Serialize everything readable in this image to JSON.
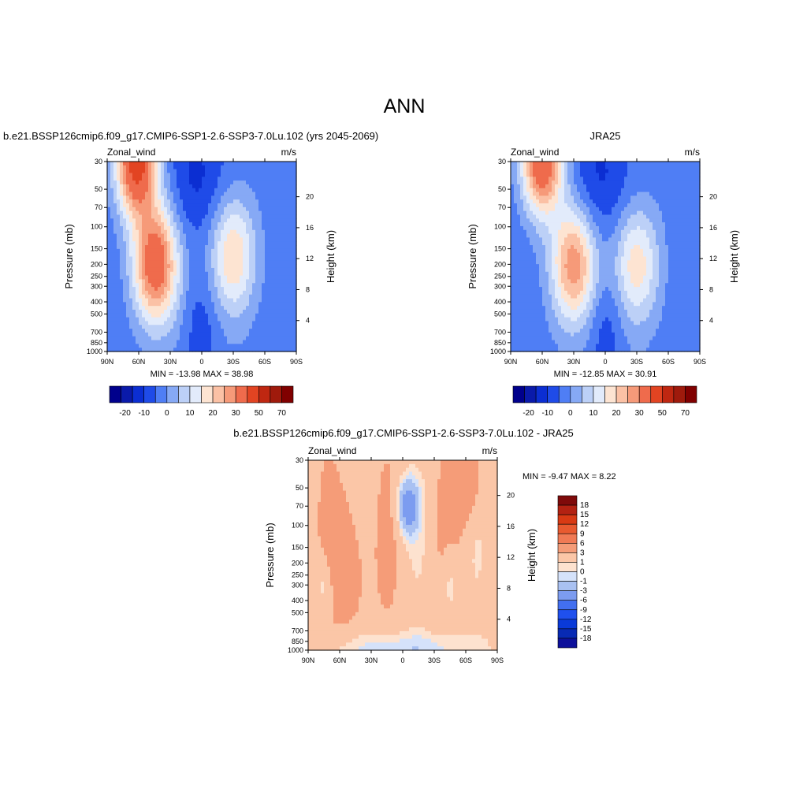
{
  "main_title": "ANN",
  "colors": {
    "top_palette": [
      "#00008c",
      "#0a1aaa",
      "#0b2ed2",
      "#1f4be8",
      "#4f7ef5",
      "#86a9f5",
      "#bcd0f7",
      "#e2ebfb",
      "#fde4d2",
      "#fbc1a5",
      "#f69a79",
      "#ef6b4c",
      "#e24422",
      "#bf2711",
      "#9f1a0c",
      "#800000"
    ],
    "diff_palette": [
      "#0d109a",
      "#082ab4",
      "#0a3ad8",
      "#1f50ee",
      "#426ff0",
      "#7c9cf0",
      "#a9c1f2",
      "#d5e2fa",
      "#fde2cf",
      "#fbc6a7",
      "#f59c78",
      "#f07a55",
      "#e85a30",
      "#d83a14",
      "#b32212",
      "#7f0a0a"
    ]
  },
  "chart_data": [
    {
      "type": "heatmap",
      "title": "b.e21.BSSP126cmip6.f09_g17.CMIP6-SSP1-2.6-SSP3-7.0Lu.102 (yrs 2045-2069)",
      "var_label": "Zonal_wind",
      "units": "m/s",
      "ylabel": "Pressure (mb)",
      "ylabel_right": "Height (km)",
      "x_ticks": [
        "90N",
        "60N",
        "30N",
        "0",
        "30S",
        "60S",
        "90S"
      ],
      "y_ticks": [
        "30",
        "50",
        "70",
        "100",
        "150",
        "200",
        "250",
        "300",
        "400",
        "500",
        "700",
        "850",
        "1000"
      ],
      "height_ticks": [
        "20",
        "16",
        "12",
        "8",
        "4"
      ],
      "min_max_text": "MIN = -13.98  MAX =  38.98",
      "colorbar_labels": [
        "-20",
        "-10",
        "0",
        "10",
        "20",
        "30",
        "50",
        "70"
      ],
      "jets": [
        {
          "lat": 44,
          "p": 200,
          "peak": 38.98
        },
        {
          "lat": -30,
          "p": 170,
          "peak": 22
        },
        {
          "lat": 62,
          "p": 30,
          "peak": 30
        }
      ],
      "min": -13.98,
      "max": 38.98
    },
    {
      "type": "heatmap",
      "title": "JRA25",
      "var_label": "Zonal_wind",
      "units": "m/s",
      "ylabel": "Pressure (mb)",
      "ylabel_right": "Height (km)",
      "x_ticks": [
        "90N",
        "60N",
        "30N",
        "0",
        "30S",
        "60S",
        "90S"
      ],
      "y_ticks": [
        "30",
        "50",
        "70",
        "100",
        "150",
        "200",
        "250",
        "300",
        "400",
        "500",
        "700",
        "850",
        "1000"
      ],
      "height_ticks": [
        "20",
        "16",
        "12",
        "8",
        "4"
      ],
      "min_max_text": "MIN = -12.85  MAX =  30.91",
      "colorbar_labels": [
        "-20",
        "-10",
        "0",
        "10",
        "20",
        "30",
        "50",
        "70"
      ],
      "jets": [
        {
          "lat": 30,
          "p": 200,
          "peak": 30.91
        },
        {
          "lat": -30,
          "p": 200,
          "peak": 20
        },
        {
          "lat": 60,
          "p": 30,
          "peak": 24
        }
      ],
      "min": -12.85,
      "max": 30.91
    },
    {
      "type": "heatmap",
      "title": "b.e21.BSSP126cmip6.f09_g17.CMIP6-SSP1-2.6-SSP3-7.0Lu.102 - JRA25",
      "var_label": "Zonal_wind",
      "units": "m/s",
      "ylabel": "Pressure (mb)",
      "ylabel_right": "Height (km)",
      "x_ticks": [
        "90N",
        "60N",
        "30N",
        "0",
        "30S",
        "60S",
        "90S"
      ],
      "y_ticks": [
        "30",
        "50",
        "70",
        "100",
        "150",
        "200",
        "250",
        "300",
        "400",
        "500",
        "700",
        "850",
        "1000"
      ],
      "height_ticks": [
        "20",
        "16",
        "12",
        "8",
        "4"
      ],
      "min_max_text": "MIN =  -9.47  MAX =   8.22",
      "colorbar_labels": [
        "18",
        "15",
        "12",
        "9",
        "6",
        "3",
        "1",
        "0",
        "-1",
        "-3",
        "-6",
        "-9",
        "-12",
        "-15",
        "-18"
      ],
      "min": -9.47,
      "max": 8.22
    }
  ]
}
